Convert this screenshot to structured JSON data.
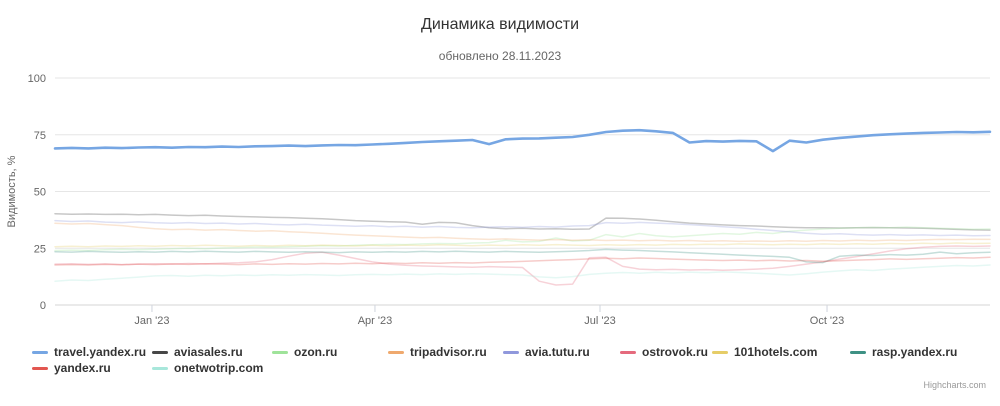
{
  "credit": "Highcharts.com",
  "chart_data": {
    "type": "line",
    "title": "Динамика видимости",
    "subtitle": "обновлено 28.11.2023",
    "xlabel": "",
    "ylabel": "Видимость, %",
    "ylim": [
      0,
      100
    ],
    "yticks": [
      0,
      25,
      50,
      75,
      100
    ],
    "xticks": [
      {
        "label": "Jan '23",
        "t": 0.1037
      },
      {
        "label": "Apr '23",
        "t": 0.3422
      },
      {
        "label": "Jul '23",
        "t": 0.5829
      },
      {
        "label": "Oct '23",
        "t": 0.8257
      }
    ],
    "grid": true,
    "legend_position": "bottom",
    "x_range_note": "weekly points, Dec 2022 - Nov 2023",
    "series": [
      {
        "name": "travel.yandex.ru",
        "color": "#76a6e3",
        "emphasis": true,
        "values": [
          69,
          69.2,
          69,
          69.3,
          69.1,
          69.4,
          69.5,
          69.3,
          69.6,
          69.5,
          69.8,
          69.6,
          69.9,
          70,
          70.2,
          70,
          70.3,
          70.5,
          70.4,
          70.7,
          71,
          71.4,
          71.8,
          72.1,
          72.4,
          72.7,
          70.9,
          73,
          73.3,
          73.4,
          73.7,
          74,
          75,
          76.2,
          76.8,
          77,
          76.5,
          75.8,
          71.6,
          72.2,
          72,
          72.3,
          72.1,
          67.8,
          72.4,
          71.6,
          72.8,
          73.6,
          74.2,
          74.8,
          75.2,
          75.5,
          75.8,
          76,
          76.2,
          76.1,
          76.3
        ]
      },
      {
        "name": "aviasales.ru",
        "color": "#474747",
        "emphasis": false,
        "values": [
          40.2,
          40,
          40.1,
          39.9,
          40,
          39.8,
          39.9,
          39.6,
          39.4,
          39.5,
          39.2,
          39,
          38.8,
          38.6,
          38.5,
          38.2,
          38,
          37.6,
          37.2,
          36.9,
          36.7,
          36.5,
          35.6,
          36.4,
          36.2,
          35,
          34,
          33.6,
          33.8,
          33.5,
          33.6,
          33.4,
          33.5,
          38.3,
          38.2,
          37.9,
          37.3,
          36.7,
          36.1,
          35.7,
          35.3,
          35,
          34.8,
          34.5,
          34.2,
          34,
          34,
          33.9,
          34,
          34.1,
          34,
          33.9,
          33.8,
          33.6,
          33.3,
          33.1,
          33
        ]
      },
      {
        "name": "ozon.ru",
        "color": "#9fe39a",
        "emphasis": false,
        "values": [
          24,
          24.2,
          24,
          24.3,
          24.5,
          24.3,
          24.6,
          24.8,
          25,
          24.8,
          25.1,
          25.3,
          25.5,
          25.4,
          25.7,
          25.9,
          26.1,
          26,
          26.3,
          26.5,
          26.7,
          26.6,
          26.9,
          27.1,
          27,
          27.3,
          27.5,
          28.5,
          27.8,
          28,
          29.5,
          28.2,
          28.5,
          31,
          30,
          31.5,
          30.5,
          30,
          30.5,
          31,
          31.5,
          31.2,
          32,
          31.5,
          32.5,
          33,
          33.5,
          33.8,
          34,
          34.2,
          34,
          34.3,
          34,
          33.8,
          33.6,
          33.4,
          33.5
        ]
      },
      {
        "name": "tripadvisor.ru",
        "color": "#efa96e",
        "emphasis": false,
        "values": [
          36,
          35.7,
          35.9,
          35.4,
          35,
          34.2,
          33.6,
          33.2,
          33.4,
          33,
          33.2,
          32.8,
          32.5,
          32.7,
          32.3,
          32,
          31.6,
          31.2,
          30.8,
          30.5,
          30.2,
          29.9,
          29.6,
          29.8,
          29.4,
          29.1,
          28.9,
          29.1,
          28.8,
          28.6,
          28.8,
          28.5,
          28.7,
          28.4,
          28.6,
          28.3,
          28.5,
          28.2,
          28.4,
          28.1,
          28.3,
          28,
          28.2,
          28,
          28.3,
          28.1,
          28.4,
          28.2,
          28.5,
          28.3,
          28.6,
          28.4,
          28.7,
          28.9,
          28.8,
          29,
          28.9
        ]
      },
      {
        "name": "avia.tutu.ru",
        "color": "#9098dc",
        "emphasis": false,
        "values": [
          37.2,
          36.8,
          37,
          36.5,
          36.3,
          36.6,
          36.2,
          36,
          36.3,
          35.9,
          36.1,
          35.7,
          35.9,
          35.5,
          35.3,
          35.6,
          35.2,
          35,
          34.7,
          34.9,
          34.5,
          34.7,
          34.3,
          34.6,
          34.2,
          34,
          34.3,
          34.5,
          34.2,
          34.6,
          34.3,
          34.8,
          35,
          36.3,
          36,
          36.4,
          36.1,
          35.8,
          35.4,
          35,
          34.5,
          34,
          33.4,
          32.8,
          32.2,
          31.6,
          31.2,
          31.4,
          31,
          30.8,
          31,
          30.7,
          30.9,
          30.6,
          30.8,
          30.5,
          30.6
        ]
      },
      {
        "name": "ostrovok.ru",
        "color": "#e56a7d",
        "emphasis": false,
        "values": [
          18,
          18.2,
          17.9,
          18.1,
          17.8,
          18,
          18.2,
          18,
          18.3,
          18.1,
          18.4,
          18.6,
          19,
          20,
          21.5,
          22.8,
          23.2,
          22,
          20.5,
          19,
          18,
          17.5,
          17.2,
          17,
          16.8,
          16.6,
          16.9,
          16.7,
          16.5,
          10.5,
          8.8,
          9.2,
          20.8,
          21,
          17,
          15.8,
          15.5,
          15.7,
          15.4,
          15.6,
          15.3,
          15.5,
          15.8,
          16.2,
          17,
          18,
          19,
          20.2,
          21.3,
          22.5,
          23.8,
          24.8,
          25.4,
          25.8,
          26,
          25.8,
          26
        ]
      },
      {
        "name": "101hotels.com",
        "color": "#e6cd68",
        "emphasis": false,
        "values": [
          25.7,
          25.9,
          25.7,
          26,
          25.8,
          26.1,
          25.9,
          26.2,
          26,
          26.3,
          26.1,
          25.9,
          26.2,
          26,
          26.3,
          26.1,
          26.4,
          26.2,
          26,
          26.3,
          26.1,
          26.4,
          26.2,
          26.5,
          26.3,
          26.1,
          26.4,
          26.2,
          26.5,
          26.3,
          26.6,
          26.4,
          26.2,
          26.5,
          26.3,
          26.6,
          26.4,
          26.7,
          26.5,
          26.8,
          26.6,
          26.9,
          26.7,
          26.5,
          26.8,
          26.6,
          26.9,
          26.7,
          27,
          26.8,
          27.1,
          26.9,
          27.2,
          27,
          27.3,
          27.1,
          27.2
        ]
      },
      {
        "name": "rasp.yandex.ru",
        "color": "#3e9184",
        "emphasis": false,
        "values": [
          23.5,
          23.3,
          23.6,
          23.4,
          23.2,
          23.5,
          23.3,
          23.6,
          23.4,
          23.7,
          23.5,
          23.3,
          23.6,
          23.4,
          23.2,
          23.5,
          23.3,
          23.1,
          23.4,
          23.2,
          23.5,
          23.3,
          23.6,
          23.4,
          23.7,
          23.5,
          23.3,
          23.6,
          23.4,
          23.2,
          23.5,
          23.7,
          24,
          24.5,
          24.2,
          24,
          23.7,
          23.4,
          23,
          22.7,
          22.4,
          22,
          21.7,
          21.4,
          21,
          19,
          18.7,
          21.5,
          22,
          21.8,
          22.2,
          22,
          22.4,
          23.3,
          22.6,
          23,
          23.2
        ]
      },
      {
        "name": "yandex.ru",
        "color": "#e25650",
        "emphasis": false,
        "values": [
          17.6,
          17.8,
          17.6,
          17.9,
          17.7,
          18,
          17.8,
          18.1,
          17.9,
          18.2,
          18,
          17.8,
          18.1,
          17.9,
          18.2,
          18,
          18.3,
          18.1,
          18.4,
          18.2,
          18.5,
          18.3,
          18.6,
          18.4,
          18.7,
          18.5,
          18.8,
          19,
          19.2,
          19.5,
          19.8,
          20,
          20.3,
          20.6,
          20.4,
          20.7,
          20.5,
          20.2,
          20,
          19.8,
          19.6,
          19.8,
          19.5,
          19.7,
          19.4,
          19.6,
          19.3,
          19.5,
          19.8,
          20,
          20.3,
          20.1,
          20.4,
          20.6,
          20.9,
          20.7,
          21
        ]
      },
      {
        "name": "onetwotrip.com",
        "color": "#a8e7db",
        "emphasis": false,
        "values": [
          10.5,
          11,
          10.8,
          11.3,
          11.8,
          12.3,
          12.8,
          13,
          12.7,
          13.1,
          12.9,
          13.2,
          13,
          13.3,
          13.1,
          13.4,
          13.2,
          13,
          13.3,
          13.5,
          13.3,
          13.6,
          13.4,
          13.7,
          13.5,
          13.8,
          13.6,
          13.4,
          13.2,
          12.4,
          12,
          12.5,
          13.5,
          14,
          14.3,
          14,
          14.4,
          14.1,
          14.5,
          14.2,
          14.6,
          14.3,
          14,
          13.6,
          13.2,
          13.8,
          14.5,
          15,
          15.5,
          15.2,
          15.8,
          16.2,
          16.6,
          17,
          17.4,
          17.2,
          17.6
        ]
      }
    ],
    "legend_order": [
      "travel.yandex.ru",
      "aviasales.ru",
      "ozon.ru",
      "tripadvisor.ru",
      "avia.tutu.ru",
      "ostrovok.ru",
      "101hotels.com",
      "rasp.yandex.ru",
      "yandex.ru",
      "onetwotrip.com"
    ]
  }
}
